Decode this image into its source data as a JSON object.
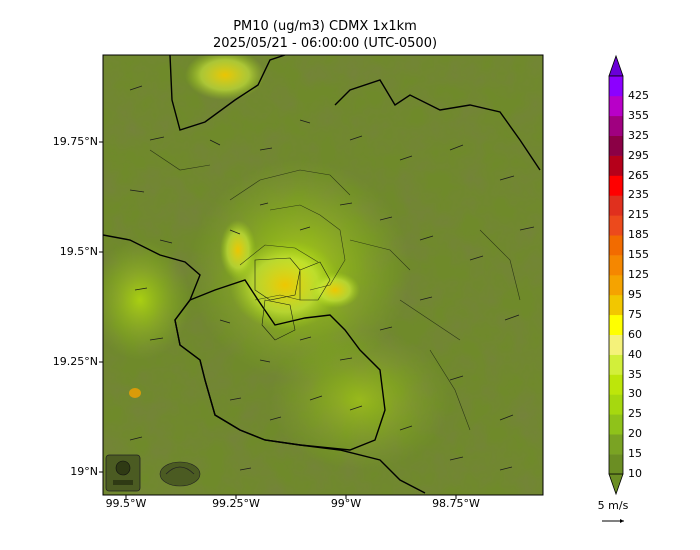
{
  "title": {
    "line1": "PM10 (ug/m3) CDMX 1x1km",
    "line2": "2025/05/21 - 06:00:00 (UTC-0500)"
  },
  "axes": {
    "y_ticks": [
      "19.75°N",
      "19.5°N",
      "19.25°N",
      "19°N"
    ],
    "x_ticks": [
      "99.5°W",
      "99.25°W",
      "99°W",
      "98.75°W"
    ]
  },
  "colorbar": {
    "levels": [
      "10",
      "15",
      "20",
      "25",
      "30",
      "35",
      "40",
      "60",
      "75",
      "95",
      "125",
      "155",
      "185",
      "215",
      "235",
      "265",
      "295",
      "325",
      "355",
      "425"
    ],
    "colors": [
      "#6b8e23",
      "#7aa323",
      "#8fc21a",
      "#a6d80f",
      "#bde60a",
      "#d2ef3a",
      "#f5f27a",
      "#ffff00",
      "#f2c700",
      "#f5a300",
      "#f58700",
      "#f26b00",
      "#ec4a1c",
      "#e0301e",
      "#ff0000",
      "#b5001a",
      "#8b0045",
      "#a00080",
      "#b800c8",
      "#8c00ff"
    ],
    "under_color": "#6b8e23",
    "over_color": "#6a00d8"
  },
  "wind_vector": {
    "label": "5 m/s"
  },
  "logos": [
    "sedema-logo",
    "cdmx-logo"
  ]
}
